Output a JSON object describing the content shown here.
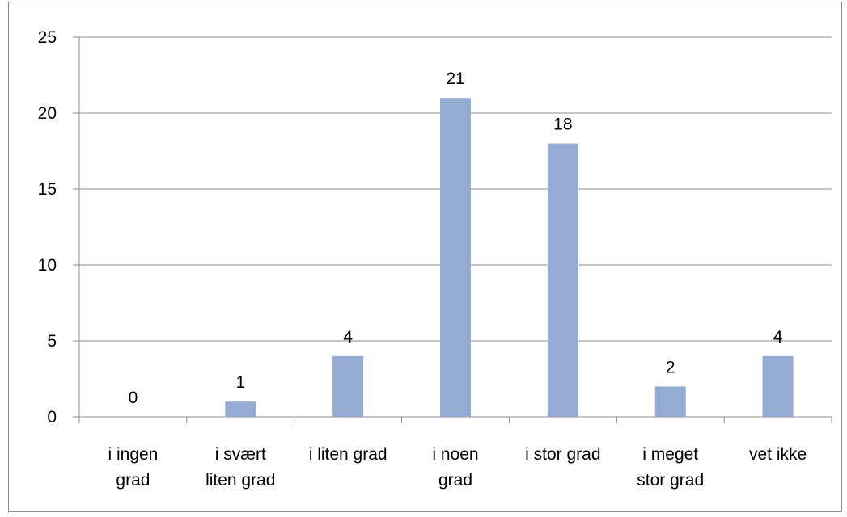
{
  "chart_data": {
    "type": "bar",
    "categories": [
      [
        "i ingen",
        "grad"
      ],
      [
        "i svært",
        "liten grad"
      ],
      [
        "i liten grad"
      ],
      [
        "i noen",
        "grad"
      ],
      [
        "i stor grad"
      ],
      [
        "i meget",
        "stor grad"
      ],
      [
        "vet ikke"
      ]
    ],
    "values": [
      0,
      1,
      4,
      21,
      18,
      2,
      4
    ],
    "ylim": [
      0,
      25
    ],
    "yticks": [
      0,
      5,
      10,
      15,
      20,
      25
    ],
    "grid": true,
    "legend": false,
    "colors": {
      "bar": "#95abd3",
      "grid": "#8c8c8c",
      "axis": "#8c8c8c"
    }
  }
}
